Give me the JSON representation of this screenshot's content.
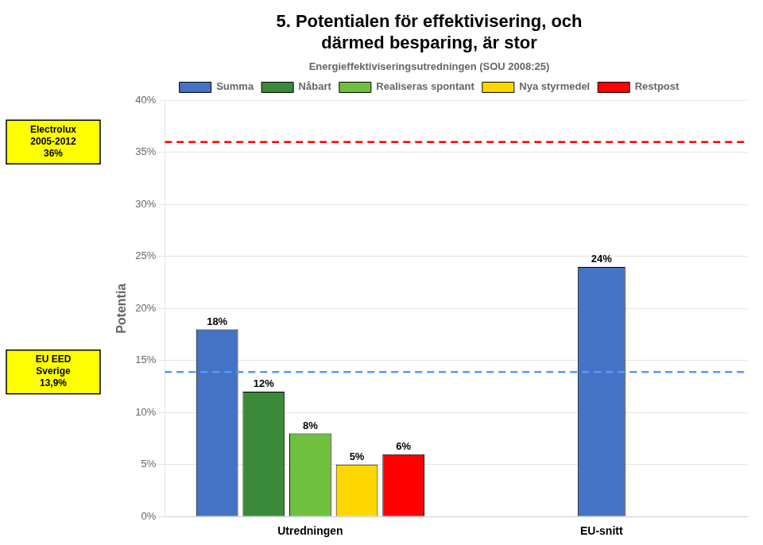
{
  "chart_data": {
    "type": "bar",
    "title": [
      "5. Potentialen för effektivisering, och",
      "därmed besparing, är stor"
    ],
    "y_label": "Potentia",
    "categories": [
      "Utredningen",
      "EU-snitt"
    ],
    "series": [
      {
        "name": "Summa",
        "color": "#4472C4",
        "values": [
          0.18,
          0.24
        ],
        "value_labels": [
          "18%",
          "24%"
        ]
      },
      {
        "name": "Nåbart",
        "color": "#3a8a3a",
        "values": [
          0.12,
          null
        ],
        "value_labels": [
          "12%",
          null
        ]
      },
      {
        "name": "Realiseras spontant",
        "color": "#70c040",
        "values": [
          0.08,
          null
        ],
        "value_labels": [
          "8%",
          null
        ]
      },
      {
        "name": "Nya styrmedel",
        "color": "#FFD700",
        "values": [
          0.05,
          null
        ],
        "value_labels": [
          "5%",
          null
        ]
      },
      {
        "name": "Restpost",
        "color": "#FF0000",
        "values": [
          0.06,
          null
        ],
        "value_labels": [
          "6%",
          null
        ]
      }
    ],
    "ylim": [
      0,
      0.4
    ],
    "yticks": [
      {
        "value": 0.0,
        "label": "0%"
      },
      {
        "value": 0.05,
        "label": "5%"
      },
      {
        "value": 0.1,
        "label": "10%"
      },
      {
        "value": 0.15,
        "label": "15%"
      },
      {
        "value": 0.2,
        "label": "20%"
      },
      {
        "value": 0.25,
        "label": "25%"
      },
      {
        "value": 0.3,
        "label": "30%"
      },
      {
        "value": 0.35,
        "label": "35%"
      },
      {
        "value": 0.4,
        "label": "40%"
      }
    ],
    "grid": true,
    "data_labels": true,
    "legend": "top",
    "legend_title": "Energieffektiviseringsutredningen (SOU 2008:25)",
    "annotations": [
      {
        "type": "hline",
        "value": 0.36,
        "label": "Electrolux\n2005-2012\n36%",
        "color": "#FF0000",
        "line_style": "dashed"
      },
      {
        "type": "hline",
        "value": 0.139,
        "label": "EU EED\nSverige\n13,9%",
        "color": "#5599ff",
        "line_style": "dashed"
      }
    ]
  }
}
